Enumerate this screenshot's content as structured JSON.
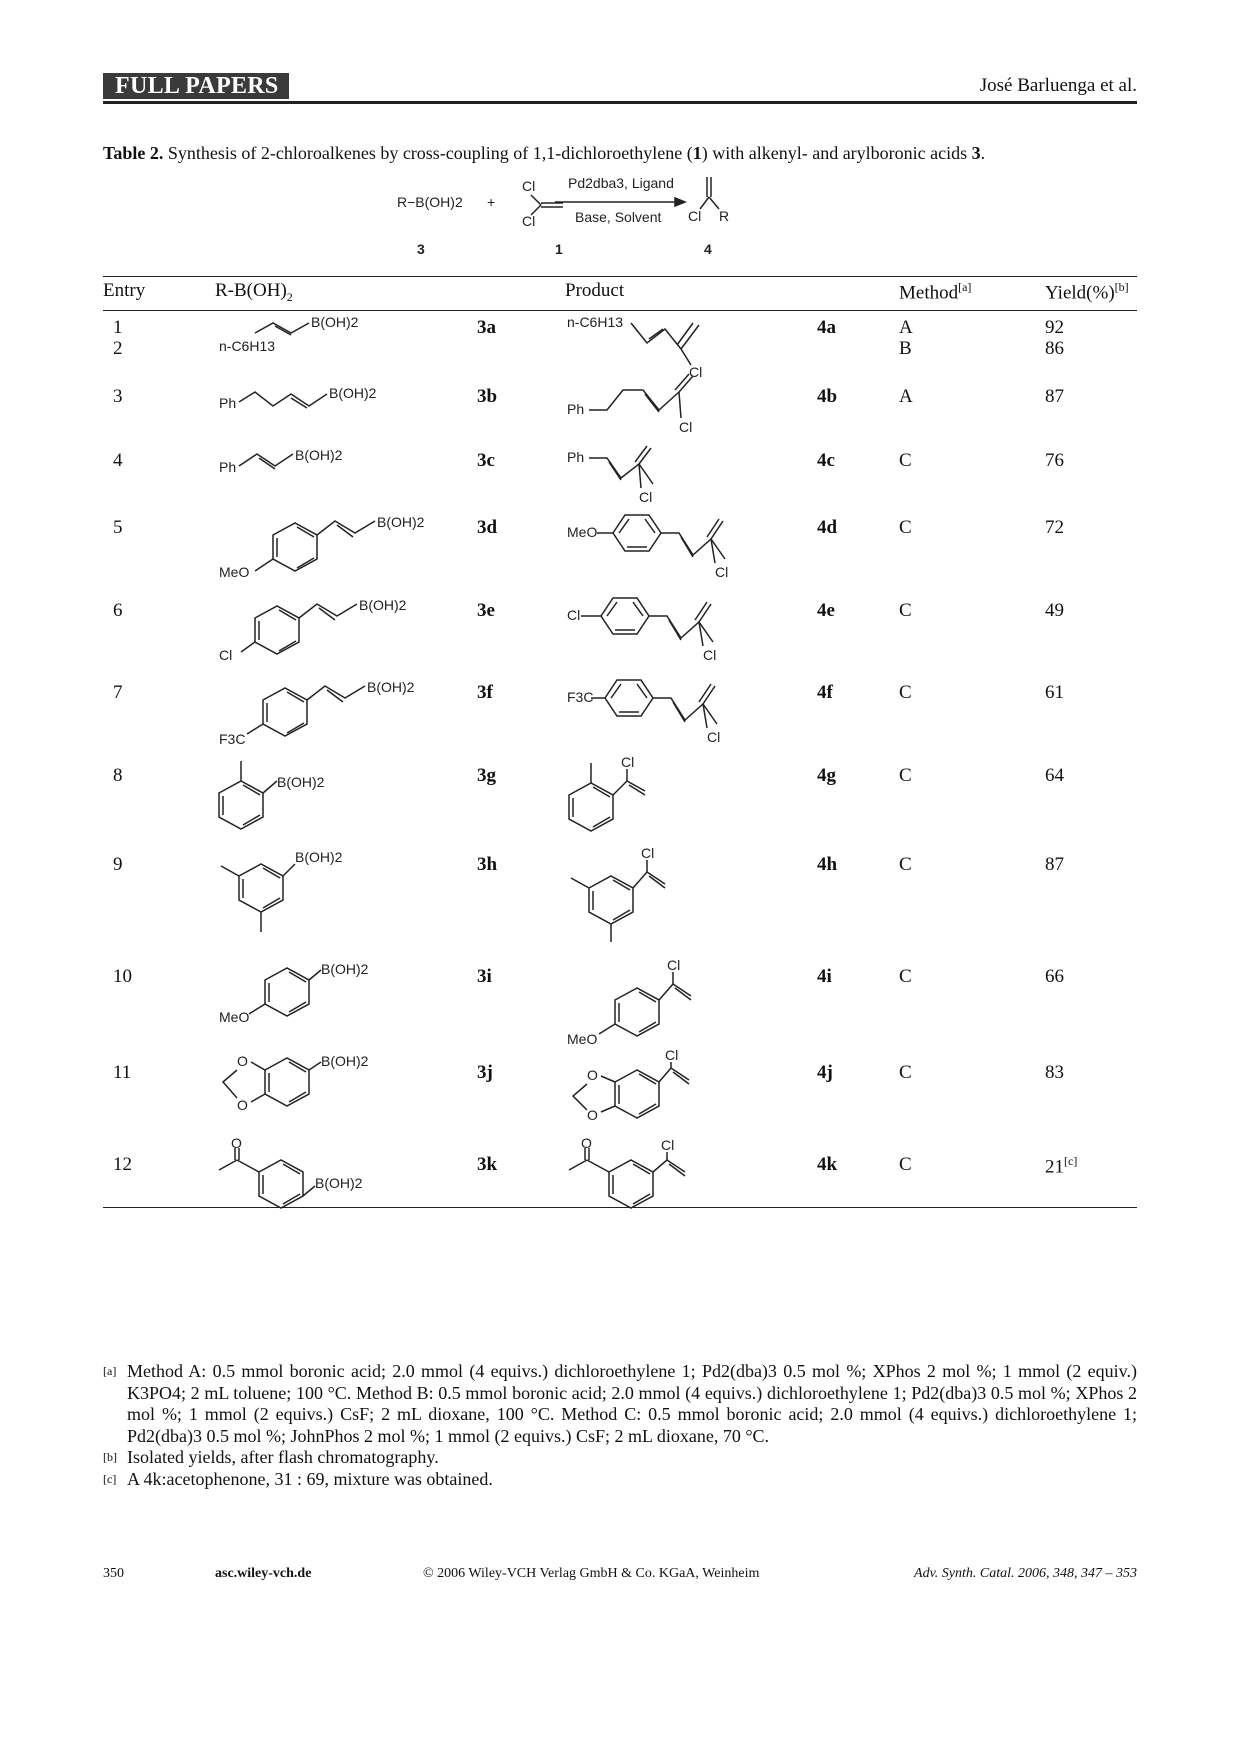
{
  "header": {
    "section": "FULL PAPERS",
    "authors": "José Barluenga et al."
  },
  "caption": {
    "label": "Table 2.",
    "text_before": "Synthesis of 2-chloroalkenes by cross-coupling of 1,1-dichloroethylene (",
    "bold1": "1",
    "text_mid": ") with alkenyl- and arylboronic acids ",
    "bold2": "3",
    "text_end": "."
  },
  "scheme": {
    "reagent": "R−B(OH)2",
    "plus": "+",
    "cl_top": "Cl",
    "cl_bottom": "Cl",
    "conditions_top": "Pd2dba3, Ligand",
    "conditions_bottom": "Base, Solvent",
    "product_cl": "Cl",
    "product_r": "R",
    "label_3": "3",
    "label_1": "1",
    "label_4": "4"
  },
  "table": {
    "headers": {
      "entry": "Entry",
      "reagent": "R-B(OH)",
      "reagent_sub": "2",
      "product": "Product",
      "method": "Method",
      "method_sup": "[a]",
      "yield": "Yield(%)",
      "yield_sup": "[b]"
    },
    "rows": [
      {
        "entry": "1\n2",
        "reagent_code": "3a",
        "product_code": "4a",
        "method": "A\nB",
        "yield": "92\n86",
        "yield_sup": ""
      },
      {
        "entry": "3",
        "reagent_code": "3b",
        "product_code": "4b",
        "method": "A",
        "yield": "87",
        "yield_sup": ""
      },
      {
        "entry": "4",
        "reagent_code": "3c",
        "product_code": "4c",
        "method": "C",
        "yield": "76",
        "yield_sup": ""
      },
      {
        "entry": "5",
        "reagent_code": "3d",
        "product_code": "4d",
        "method": "C",
        "yield": "72",
        "yield_sup": ""
      },
      {
        "entry": "6",
        "reagent_code": "3e",
        "product_code": "4e",
        "method": "C",
        "yield": "49",
        "yield_sup": ""
      },
      {
        "entry": "7",
        "reagent_code": "3f",
        "product_code": "4f",
        "method": "C",
        "yield": "61",
        "yield_sup": ""
      },
      {
        "entry": "8",
        "reagent_code": "3g",
        "product_code": "4g",
        "method": "C",
        "yield": "64",
        "yield_sup": ""
      },
      {
        "entry": "9",
        "reagent_code": "3h",
        "product_code": "4h",
        "method": "C",
        "yield": "87",
        "yield_sup": ""
      },
      {
        "entry": "10",
        "reagent_code": "3i",
        "product_code": "4i",
        "method": "C",
        "yield": "66",
        "yield_sup": ""
      },
      {
        "entry": "11",
        "reagent_code": "3j",
        "product_code": "4j",
        "method": "C",
        "yield": "83",
        "yield_sup": ""
      },
      {
        "entry": "12",
        "reagent_code": "3k",
        "product_code": "4k",
        "method": "C",
        "yield": "21",
        "yield_sup": "[c]"
      }
    ],
    "structure_labels": {
      "boronic": "B(OH)2",
      "hexyl": "n-C6H13",
      "ph": "Ph",
      "meo": "MeO",
      "cl": "Cl",
      "cf3": "F3C",
      "o": "O"
    }
  },
  "footnotes": {
    "a_mark": "[a]",
    "a_text": "Method A: 0.5 mmol boronic acid; 2.0 mmol (4 equivs.) dichloroethylene 1; Pd2(dba)3 0.5 mol %; XPhos 2 mol %; 1 mmol (2 equiv.) K3PO4; 2 mL toluene; 100 °C. Method B: 0.5 mmol boronic acid; 2.0 mmol (4 equivs.) dichloroethylene 1; Pd2(dba)3 0.5 mol %; XPhos 2 mol %; 1 mmol (2 equivs.) CsF; 2 mL dioxane, 100 °C. Method C: 0.5 mmol boronic acid; 2.0 mmol (4 equivs.) dichloroethylene 1; Pd2(dba)3 0.5 mol %; JohnPhos 2 mol %; 1 mmol (2 equivs.) CsF; 2 mL dioxane, 70 °C.",
    "b_mark": "[b]",
    "b_text": "Isolated yields, after flash chromatography.",
    "c_mark": "[c]",
    "c_text": "A 4k:acetophenone, 31 : 69, mixture was obtained."
  },
  "footer": {
    "page": "350",
    "site": "asc.wiley-vch.de",
    "copyright": "© 2006 Wiley-VCH Verlag GmbH & Co. KGaA, Weinheim",
    "journal": "Adv. Synth. Catal. 2006, 348, 347 – 353"
  }
}
